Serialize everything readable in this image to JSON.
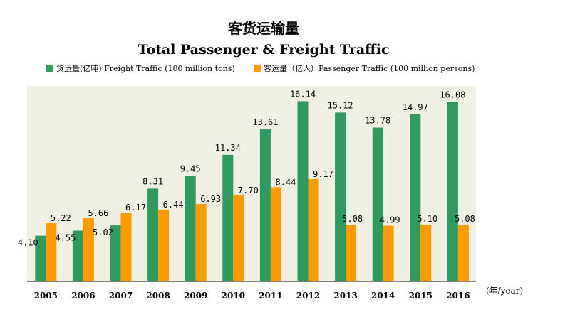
{
  "chart_data": {
    "type": "bar",
    "title": "客货运输量",
    "subtitle": "Total Passenger & Freight Traffic",
    "categories": [
      "2005",
      "2006",
      "2007",
      "2008",
      "2009",
      "2010",
      "2011",
      "2012",
      "2013",
      "2014",
      "2015",
      "2016"
    ],
    "series": [
      {
        "name": "货运量(亿吨) Freight Traffic (100 million tons)",
        "color": "#2e9a5e",
        "values": [
          4.1,
          4.55,
          5.02,
          8.31,
          9.45,
          11.34,
          13.61,
          16.14,
          15.12,
          13.78,
          14.97,
          16.08
        ],
        "labels": [
          "4.10",
          "4.55",
          "5.02",
          "8.31",
          "9.45",
          "11.34",
          "13.61",
          "16.14",
          "15.12",
          "13.78",
          "14.97",
          "16.08"
        ]
      },
      {
        "name": "客运量（亿人）Passenger Traffic (100 million persons)",
        "color": "#ff9a00",
        "values": [
          5.22,
          5.66,
          6.17,
          6.44,
          6.93,
          7.7,
          8.44,
          9.17,
          5.08,
          4.99,
          5.1,
          5.08
        ],
        "labels": [
          "5.22",
          "5.66",
          "6.17",
          "6.44",
          "6.93",
          "7.70",
          "8.44",
          "9.17",
          "5.08",
          "4.99",
          "5.10",
          "5.08"
        ]
      }
    ],
    "x_unit": "(年/year)",
    "ylim": [
      0,
      17.5
    ],
    "grid": false,
    "legend_position": "top-left",
    "plot_background": "#f0efe4"
  }
}
